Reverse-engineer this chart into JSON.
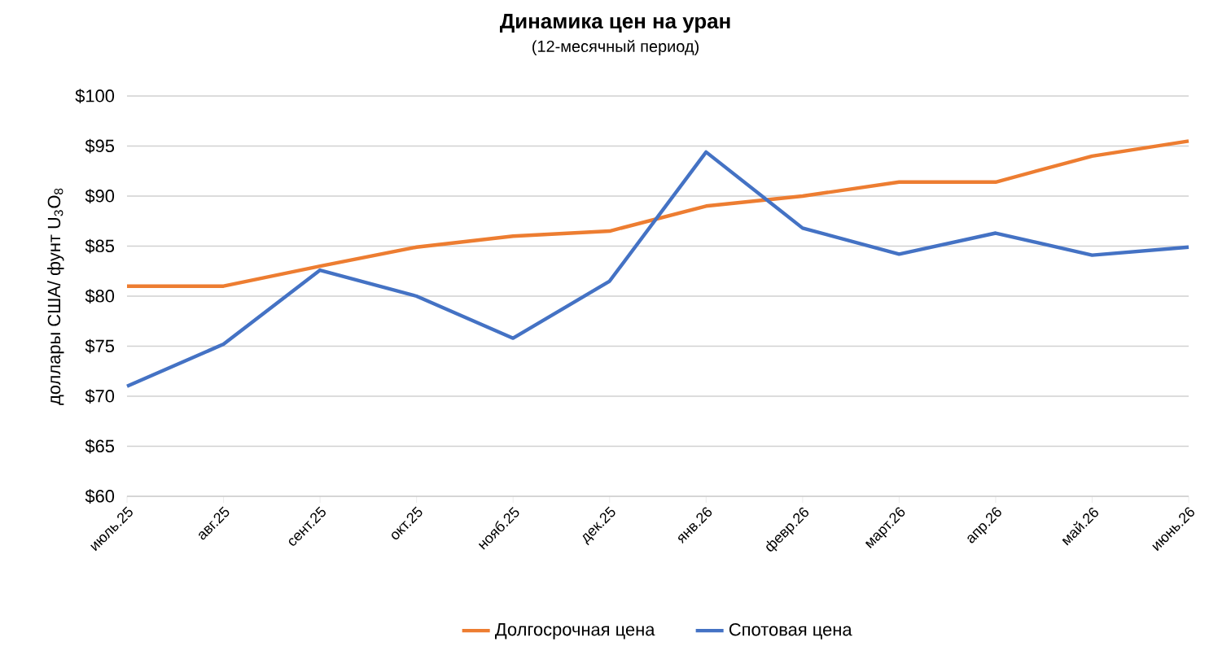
{
  "chart_data": {
    "type": "line",
    "title": "Динамика цен на уран",
    "subtitle": "(12-месячный период)",
    "ylabel": "доллары США/ фунт U$_{3}$O$_{8}$",
    "categories": [
      "июль.25",
      "авг.25",
      "сент.25",
      "окт.25",
      "нояб.25",
      "дек.25",
      "янв.26",
      "февр.26",
      "март.26",
      "апр.26",
      "май.26",
      "июнь.26"
    ],
    "series": [
      {
        "name": "Долгосрочная цена",
        "color": "#ed7d31",
        "values": [
          81,
          81,
          83,
          84.9,
          86,
          86.5,
          89,
          90,
          91.4,
          91.4,
          94,
          95.5
        ]
      },
      {
        "name": "Спотовая цена",
        "color": "#4472c4",
        "values": [
          71,
          75.2,
          82.6,
          80,
          75.8,
          81.5,
          94.4,
          86.8,
          84.2,
          86.3,
          84.1,
          84.9
        ]
      }
    ],
    "ylim": [
      60,
      100
    ],
    "yticks": [
      {
        "value": 60,
        "label": "$60"
      },
      {
        "value": 65,
        "label": "$65"
      },
      {
        "value": 70,
        "label": "$70"
      },
      {
        "value": 75,
        "label": "$75"
      },
      {
        "value": 80,
        "label": "$80"
      },
      {
        "value": 85,
        "label": "$85"
      },
      {
        "value": 90,
        "label": "$90"
      },
      {
        "value": 95,
        "label": "$95"
      },
      {
        "value": 100,
        "label": "$100"
      }
    ],
    "grid": "y",
    "legend": "bottom",
    "marker": "none",
    "line_style": "solid"
  }
}
